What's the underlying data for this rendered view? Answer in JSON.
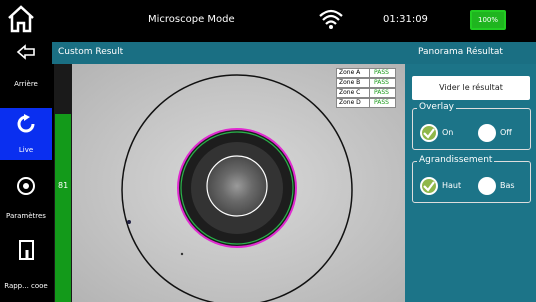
{
  "status_bar": {
    "mode": "Microscope Mode",
    "time": "01:31:09",
    "battery": "100%"
  },
  "sidebar": {
    "items": [
      "Arrière",
      "Live",
      "Paramètres",
      "Rapp... cooe"
    ]
  },
  "header": {
    "title": "Custom Result",
    "panel_title": "Panorama Résultat"
  },
  "focus_value": "81",
  "zones": [
    {
      "label": "Zone A",
      "status": "PASS"
    },
    {
      "label": "Zone B",
      "status": "PASS"
    },
    {
      "label": "Zone C",
      "status": "PASS"
    },
    {
      "label": "Zone D",
      "status": "PASS"
    }
  ],
  "panel": {
    "clear_button": "Vider le résultat",
    "overlay": {
      "title": "Overlay",
      "options": [
        "On",
        "Off"
      ]
    },
    "zoom": {
      "title": "Agrandissement",
      "options": [
        "Haut",
        "Bas"
      ]
    }
  }
}
